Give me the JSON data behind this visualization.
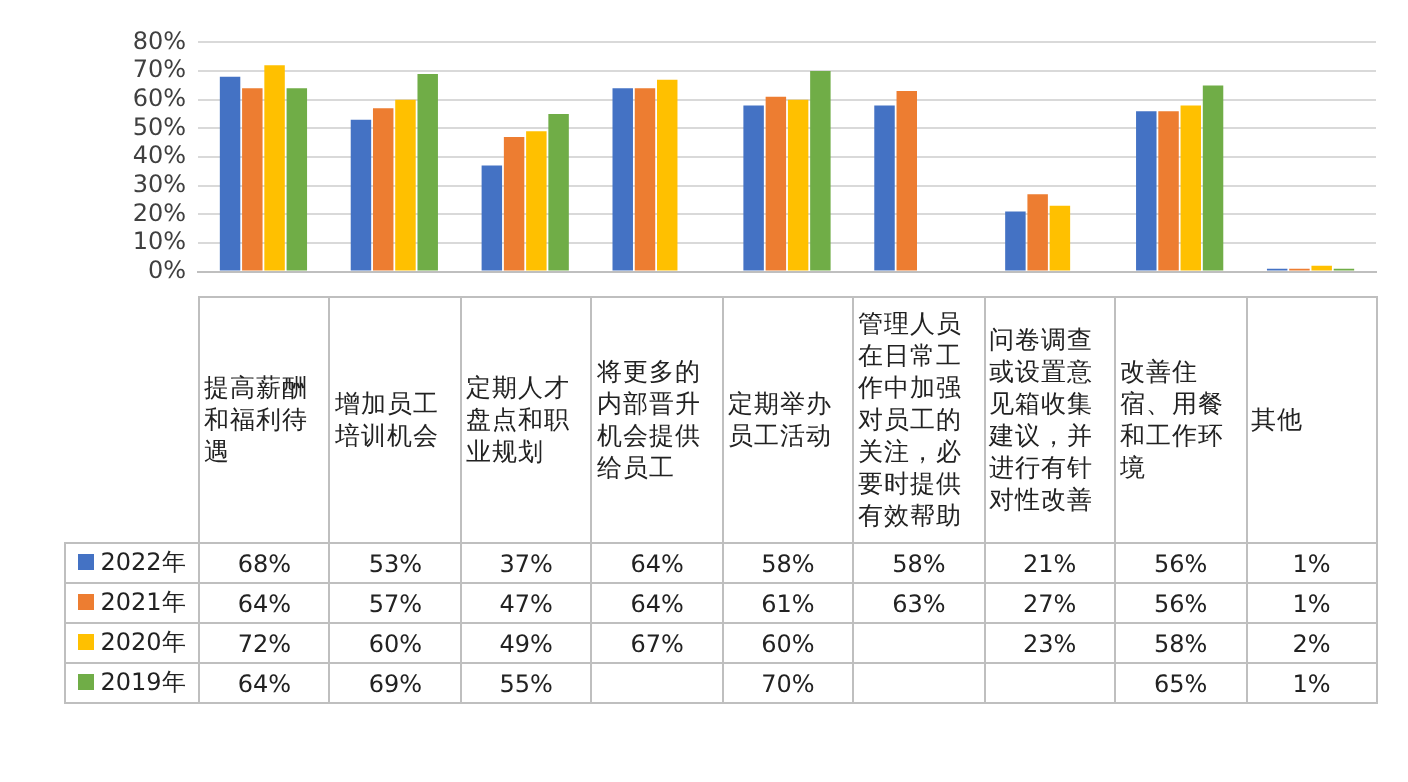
{
  "chart_data": {
    "type": "bar",
    "categories": [
      "提高薪酬和福利待遇",
      "增加员工培训机会",
      "定期人才盘点和职业规划",
      "将更多的内部晋升机会提供给员工",
      "定期举办员工活动",
      "管理人员在日常工作中加强对员工的关注，必要时提供有效帮助",
      "问卷调查或设置意见箱收集建议，并进行有针对性改善",
      "改善住宿、用餐和工作环境",
      "其他"
    ],
    "series": [
      {
        "name": "2022年",
        "color": "#4472c4",
        "values": [
          68,
          53,
          37,
          64,
          58,
          58,
          21,
          56,
          1
        ],
        "value_labels": [
          "68%",
          "53%",
          "37%",
          "64%",
          "58%",
          "58%",
          "21%",
          "56%",
          "1%"
        ]
      },
      {
        "name": "2021年",
        "color": "#ed7d31",
        "values": [
          64,
          57,
          47,
          64,
          61,
          63,
          27,
          56,
          1
        ],
        "value_labels": [
          "64%",
          "57%",
          "47%",
          "64%",
          "61%",
          "63%",
          "27%",
          "56%",
          "1%"
        ]
      },
      {
        "name": "2020年",
        "color": "#ffc000",
        "values": [
          72,
          60,
          49,
          67,
          60,
          null,
          23,
          58,
          2
        ],
        "value_labels": [
          "72%",
          "60%",
          "49%",
          "67%",
          "60%",
          null,
          "23%",
          "58%",
          "2%"
        ]
      },
      {
        "name": "2019年",
        "color": "#70ad47",
        "values": [
          64,
          69,
          55,
          null,
          70,
          null,
          null,
          65,
          1
        ],
        "value_labels": [
          "64%",
          "69%",
          "55%",
          null,
          "70%",
          null,
          null,
          "65%",
          "1%"
        ]
      }
    ],
    "ylim": [
      0,
      80
    ],
    "yticks": [
      {
        "value": 0,
        "label": "0%"
      },
      {
        "value": 10,
        "label": "10%"
      },
      {
        "value": 20,
        "label": "20%"
      },
      {
        "value": 30,
        "label": "30%"
      },
      {
        "value": 40,
        "label": "40%"
      },
      {
        "value": 50,
        "label": "50%"
      },
      {
        "value": 60,
        "label": "60%"
      },
      {
        "value": 70,
        "label": "70%"
      },
      {
        "value": 80,
        "label": "80%"
      }
    ],
    "grid": "y",
    "legend": "bottom left"
  }
}
